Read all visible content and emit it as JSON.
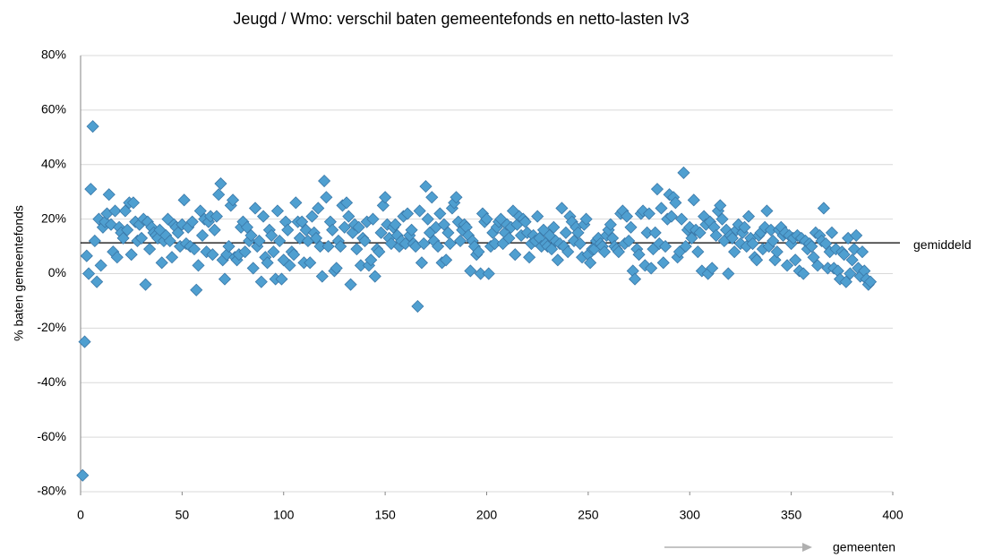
{
  "chart_data": {
    "type": "scatter",
    "title": "Jeugd / Wmo: verschil baten gemeentefonds en netto-lasten Iv3",
    "y_label": "% baten gemeentefonds",
    "x_label": "gemeenten",
    "mean_label": "gemiddeld",
    "mean": 11.3,
    "grid": true,
    "xlim": [
      0,
      400
    ],
    "xticks": [
      0,
      50,
      100,
      150,
      200,
      250,
      300,
      350,
      400
    ],
    "ylim": [
      -80,
      80
    ],
    "yticks": [
      {
        "value": -80,
        "label": "-80%"
      },
      {
        "value": -60,
        "label": "-60%"
      },
      {
        "value": -40,
        "label": "-40%"
      },
      {
        "value": -20,
        "label": "-20%"
      },
      {
        "value": 0,
        "label": "0%"
      },
      {
        "value": 20,
        "label": "20%"
      },
      {
        "value": 40,
        "label": "40%"
      },
      {
        "value": 60,
        "label": "60%"
      },
      {
        "value": 80,
        "label": "80%"
      }
    ],
    "color": "#4f9fd0",
    "x": [
      1,
      2,
      3,
      4,
      5,
      6,
      7,
      8,
      9,
      10,
      11,
      12,
      13,
      14,
      15,
      16,
      17,
      18,
      19,
      20,
      21,
      22,
      23,
      24,
      25,
      26,
      27,
      28,
      29,
      30,
      31,
      32,
      33,
      34,
      35,
      36,
      37,
      38,
      39,
      40,
      41,
      42,
      43,
      44,
      45,
      46,
      47,
      48,
      49,
      50,
      51,
      52,
      53,
      54,
      55,
      56,
      57,
      58,
      59,
      60,
      61,
      62,
      63,
      64,
      65,
      66,
      67,
      68,
      69,
      70,
      71,
      72,
      73,
      74,
      75,
      76,
      77,
      78,
      79,
      80,
      81,
      82,
      83,
      84,
      85,
      86,
      87,
      88,
      89,
      90,
      91,
      92,
      93,
      94,
      95,
      96,
      97,
      98,
      99,
      100,
      101,
      102,
      103,
      104,
      105,
      106,
      107,
      108,
      109,
      110,
      111,
      112,
      113,
      114,
      115,
      116,
      117,
      118,
      119,
      120,
      121,
      122,
      123,
      124,
      125,
      126,
      127,
      128,
      129,
      130,
      131,
      132,
      133,
      134,
      135,
      136,
      137,
      138,
      139,
      140,
      141,
      142,
      143,
      144,
      145,
      146,
      147,
      148,
      149,
      150,
      151,
      152,
      153,
      154,
      155,
      156,
      157,
      158,
      159,
      160,
      161,
      162,
      163,
      164,
      165,
      166,
      167,
      168,
      169,
      170,
      171,
      172,
      173,
      174,
      175,
      176,
      177,
      178,
      179,
      180,
      181,
      182,
      183,
      184,
      185,
      186,
      187,
      188,
      189,
      190,
      191,
      192,
      193,
      194,
      195,
      196,
      197,
      198,
      199,
      200,
      201,
      202,
      203,
      204,
      205,
      206,
      207,
      208,
      209,
      210,
      211,
      212,
      213,
      214,
      215,
      216,
      217,
      218,
      219,
      220,
      221,
      222,
      223,
      224,
      225,
      226,
      227,
      228,
      229,
      230,
      231,
      232,
      233,
      234,
      235,
      236,
      237,
      238,
      239,
      240,
      241,
      242,
      243,
      244,
      245,
      246,
      247,
      248,
      249,
      250,
      251,
      252,
      253,
      254,
      255,
      256,
      257,
      258,
      259,
      260,
      261,
      262,
      263,
      264,
      265,
      266,
      267,
      268,
      269,
      270,
      271,
      272,
      273,
      274,
      275,
      276,
      277,
      278,
      279,
      280,
      281,
      282,
      283,
      284,
      285,
      286,
      287,
      288,
      289,
      290,
      291,
      292,
      293,
      294,
      295,
      296,
      297,
      298,
      299,
      300,
      301,
      302,
      303,
      304,
      305,
      306,
      307,
      308,
      309,
      310,
      311,
      312,
      313,
      314,
      315,
      316,
      317,
      318,
      319,
      320,
      321,
      322,
      323,
      324,
      325,
      326,
      327,
      328,
      329,
      330,
      331,
      332,
      333,
      334,
      335,
      336,
      337,
      338,
      339,
      340,
      341,
      342,
      343,
      344,
      345,
      346,
      347,
      348,
      349,
      350,
      351,
      352,
      353,
      354,
      355,
      356,
      357,
      358,
      359,
      360,
      361,
      362,
      363,
      364,
      365,
      366,
      367,
      368,
      369,
      370,
      371,
      372,
      373,
      374,
      375,
      376,
      377,
      378,
      379,
      380,
      381,
      382,
      383,
      384,
      385,
      386,
      387,
      388,
      389
    ],
    "values": [
      -74,
      -25,
      6.5,
      0,
      31,
      54,
      12,
      -3,
      20,
      3,
      17,
      19,
      22,
      29,
      18,
      8,
      23,
      6,
      17,
      15,
      13,
      23,
      16,
      26,
      7,
      26,
      19,
      12,
      18,
      13,
      20,
      -4,
      19,
      9,
      17,
      15,
      14,
      13,
      16,
      4,
      12,
      14,
      20,
      12,
      6,
      18,
      17,
      15,
      10,
      18,
      27,
      11,
      17,
      10,
      19,
      9,
      -6,
      3,
      23,
      14,
      20,
      8,
      19,
      21,
      7,
      16,
      21,
      29,
      33,
      5,
      -2,
      7,
      10,
      25,
      27,
      6,
      5,
      7,
      17,
      19,
      8,
      17,
      12,
      14,
      2,
      24,
      10,
      12,
      -3,
      21,
      6,
      4,
      16,
      14,
      8,
      -2,
      23,
      12,
      -2,
      5,
      19,
      16,
      3,
      8,
      7,
      26,
      19,
      13,
      19,
      4,
      16,
      12,
      4,
      21,
      15,
      13,
      24,
      10,
      -1,
      34,
      28,
      10,
      19,
      16,
      1,
      2,
      12,
      10,
      25,
      17,
      26,
      21,
      -4,
      15,
      18,
      9,
      17,
      3,
      13,
      12,
      19,
      3,
      5,
      20,
      -1,
      9,
      8,
      15,
      25,
      28,
      18,
      13,
      11,
      17,
      18,
      14,
      10,
      12,
      21,
      11,
      22,
      14,
      16,
      11,
      10,
      -12,
      23,
      4,
      11,
      32,
      20,
      15,
      28,
      12,
      17,
      10,
      22,
      4,
      18,
      5,
      15,
      11,
      24,
      26,
      28,
      19,
      12,
      16,
      18,
      17,
      14,
      1,
      12,
      10,
      7,
      8,
      0,
      22,
      19,
      20,
      0,
      10,
      15,
      11,
      17,
      19,
      20,
      11,
      15,
      18,
      13,
      17,
      23,
      7,
      18,
      21,
      14,
      20,
      19,
      15,
      6,
      11,
      14,
      12,
      21,
      13,
      10,
      16,
      11,
      10,
      14,
      9,
      17,
      12,
      5,
      11,
      24,
      10,
      15,
      8,
      21,
      19,
      12,
      17,
      15,
      11,
      6,
      18,
      20,
      7,
      4,
      9,
      9,
      12,
      13,
      11,
      10,
      8,
      14,
      16,
      18,
      13,
      10,
      9,
      8,
      22,
      23,
      11,
      21,
      12,
      17,
      1,
      -2,
      9,
      7,
      22,
      23,
      3,
      15,
      22,
      2,
      9,
      15,
      31,
      11,
      24,
      4,
      10,
      20,
      29,
      21,
      28,
      26,
      6,
      8,
      20,
      37,
      10,
      16,
      17,
      13,
      27,
      16,
      8,
      15,
      1,
      21,
      18,
      0,
      19,
      2,
      17,
      14,
      23,
      25,
      20,
      12,
      16,
      0,
      14,
      13,
      8,
      16,
      18,
      11,
      15,
      17,
      10,
      21,
      13,
      11,
      6,
      5,
      14,
      15,
      9,
      17,
      23,
      10,
      16,
      12,
      5,
      8,
      16,
      17,
      14,
      15,
      3,
      14,
      11,
      13,
      5,
      14,
      1,
      13,
      0,
      12,
      9,
      11,
      10,
      6,
      15,
      3,
      14,
      12,
      24,
      11,
      2,
      8,
      15,
      2,
      9,
      1,
      -2,
      8,
      7,
      -3,
      13,
      0,
      5,
      9,
      14,
      2,
      -1,
      8,
      1,
      -2,
      -4,
      -3
    ]
  }
}
